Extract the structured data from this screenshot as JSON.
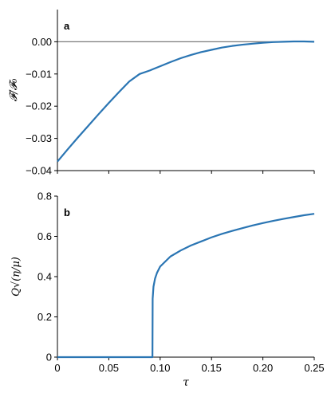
{
  "chart_data": [
    {
      "type": "line",
      "panel_label": "a",
      "ylabel": "𝓕/𝓕₀",
      "xlabel": "",
      "xlim": [
        0,
        0.25
      ],
      "ylim": [
        -0.04,
        0.01
      ],
      "yticks": [
        -0.04,
        -0.03,
        -0.02,
        -0.01,
        0.0
      ],
      "ytick_labels": [
        "−0.04",
        "−0.03",
        "−0.02",
        "−0.01",
        "0.00"
      ],
      "xticks": [
        0,
        0.05,
        0.1,
        0.15,
        0.2,
        0.25
      ],
      "reference_line_y": 0,
      "series": [
        {
          "color": "#2a75b3",
          "x": [
            0,
            0.01,
            0.02,
            0.03,
            0.04,
            0.05,
            0.06,
            0.07,
            0.08,
            0.09,
            0.093,
            0.1,
            0.11,
            0.12,
            0.13,
            0.14,
            0.15,
            0.16,
            0.17,
            0.18,
            0.19,
            0.2,
            0.21,
            0.22,
            0.23,
            0.24,
            0.25
          ],
          "y": [
            -0.0372,
            -0.0334,
            -0.0297,
            -0.0261,
            -0.0225,
            -0.019,
            -0.0156,
            -0.0123,
            -0.01,
            -0.0089,
            -0.0085,
            -0.0076,
            -0.0063,
            -0.0051,
            -0.0041,
            -0.0032,
            -0.0025,
            -0.0018,
            -0.0013,
            -0.0009,
            -0.0006,
            -0.0003,
            -0.0001,
            0.0,
            0.0001,
            0.0001,
            0.0
          ]
        }
      ]
    },
    {
      "type": "line",
      "panel_label": "b",
      "ylabel": "Q√(η/μ)",
      "xlabel": "τ",
      "xlim": [
        0,
        0.25
      ],
      "ylim": [
        0,
        0.8
      ],
      "yticks": [
        0,
        0.2,
        0.4,
        0.6,
        0.8
      ],
      "ytick_labels": [
        "0",
        "0.2",
        "0.4",
        "0.6",
        "0.8"
      ],
      "xticks": [
        0,
        0.05,
        0.1,
        0.15,
        0.2,
        0.25
      ],
      "xtick_labels": [
        "0",
        "0.05",
        "0.10",
        "0.15",
        "0.20",
        "0.25"
      ],
      "series": [
        {
          "color": "#2a75b3",
          "x": [
            0,
            0.05,
            0.0925,
            0.0927,
            0.0935,
            0.095,
            0.097,
            0.1,
            0.11,
            0.12,
            0.13,
            0.14,
            0.15,
            0.16,
            0.17,
            0.18,
            0.19,
            0.2,
            0.21,
            0.22,
            0.23,
            0.24,
            0.25
          ],
          "y": [
            0,
            0,
            0,
            0.29,
            0.35,
            0.39,
            0.42,
            0.45,
            0.5,
            0.53,
            0.555,
            0.575,
            0.595,
            0.612,
            0.627,
            0.641,
            0.654,
            0.666,
            0.677,
            0.687,
            0.696,
            0.705,
            0.712
          ]
        }
      ]
    }
  ]
}
